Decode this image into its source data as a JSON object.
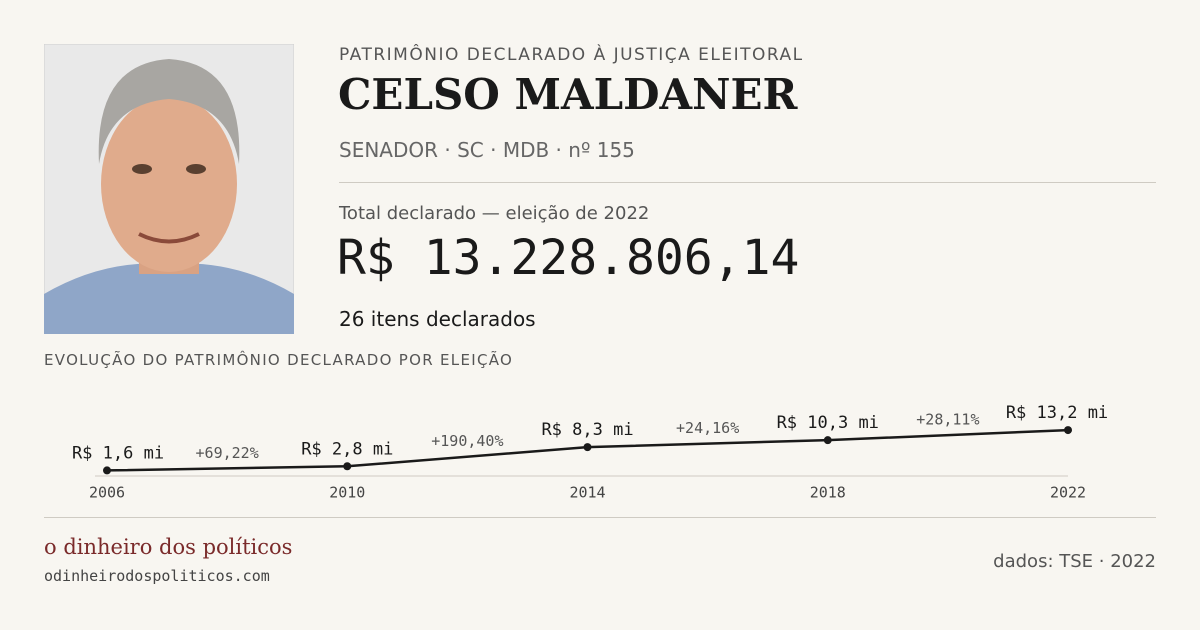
{
  "header": {
    "kicker": "PATRIMÔNIO  DECLARADO À JUSTIÇA ELEITORAL",
    "name": "CELSO MALDANER",
    "subtitle": "SENADOR · SC · MDB · nº 155"
  },
  "total": {
    "label": "Total declarado — eleição de 2022",
    "amount": "R$ 13.228.806,14",
    "items": "26 itens declarados"
  },
  "chart": {
    "type": "line",
    "title": "EVOLUÇÃO DO PATRIMÔNIO  DECLARADO POR ELEIÇÃO",
    "x": [
      2006,
      2010,
      2014,
      2018,
      2022
    ],
    "values": [
      1.6,
      2.8,
      8.3,
      10.3,
      13.2
    ],
    "value_labels": [
      "R$ 1,6 mi",
      "R$ 2,8 mi",
      "R$ 8,3 mi",
      "R$ 10,3 mi",
      "R$ 13,2 mi"
    ],
    "change_labels": [
      "+69,22%",
      "+190,40%",
      "+24,16%",
      "+28,11%"
    ],
    "color": "#1a1a1a"
  },
  "footer": {
    "brand": "o dinheiro dos políticos",
    "url": "odinheirodospoliticos.com",
    "source": "dados: TSE · 2022"
  }
}
